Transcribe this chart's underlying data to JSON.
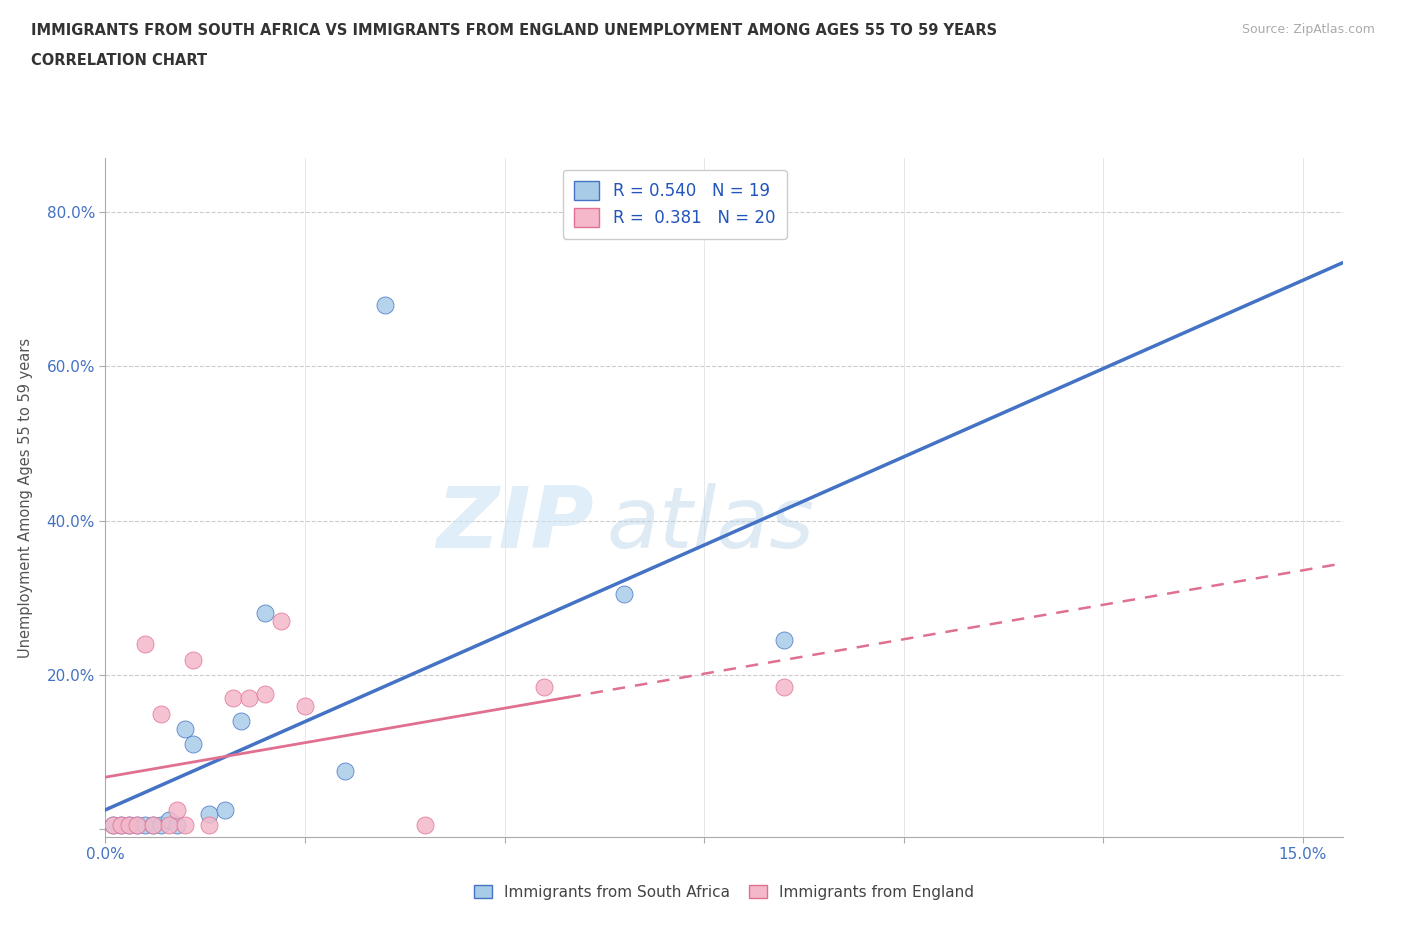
{
  "title_line1": "IMMIGRANTS FROM SOUTH AFRICA VS IMMIGRANTS FROM ENGLAND UNEMPLOYMENT AMONG AGES 55 TO 59 YEARS",
  "title_line2": "CORRELATION CHART",
  "source_text": "Source: ZipAtlas.com",
  "ylabel_text": "Unemployment Among Ages 55 to 59 years",
  "xlim": [
    0.0,
    0.155
  ],
  "ylim": [
    -0.01,
    0.87
  ],
  "r_blue": 0.54,
  "n_blue": 19,
  "r_pink": 0.381,
  "n_pink": 20,
  "color_blue": "#a8cce8",
  "color_pink": "#f4b8ca",
  "line_blue": "#4472c4",
  "line_pink": "#e07090",
  "watermark_part1": "ZIP",
  "watermark_part2": "atlas",
  "blue_x": [
    0.001,
    0.002,
    0.003,
    0.004,
    0.005,
    0.006,
    0.007,
    0.008,
    0.009,
    0.01,
    0.011,
    0.013,
    0.015,
    0.017,
    0.02,
    0.03,
    0.035,
    0.065,
    0.085
  ],
  "blue_y": [
    0.005,
    0.005,
    0.005,
    0.005,
    0.005,
    0.005,
    0.005,
    0.012,
    0.005,
    0.13,
    0.11,
    0.02,
    0.025,
    0.14,
    0.28,
    0.075,
    0.68,
    0.305,
    0.245
  ],
  "pink_x": [
    0.001,
    0.002,
    0.003,
    0.004,
    0.005,
    0.006,
    0.007,
    0.008,
    0.009,
    0.01,
    0.011,
    0.013,
    0.016,
    0.018,
    0.02,
    0.022,
    0.025,
    0.04,
    0.055,
    0.085
  ],
  "pink_y": [
    0.005,
    0.005,
    0.005,
    0.005,
    0.24,
    0.005,
    0.15,
    0.005,
    0.025,
    0.005,
    0.22,
    0.005,
    0.17,
    0.17,
    0.175,
    0.27,
    0.16,
    0.005,
    0.185,
    0.185
  ]
}
